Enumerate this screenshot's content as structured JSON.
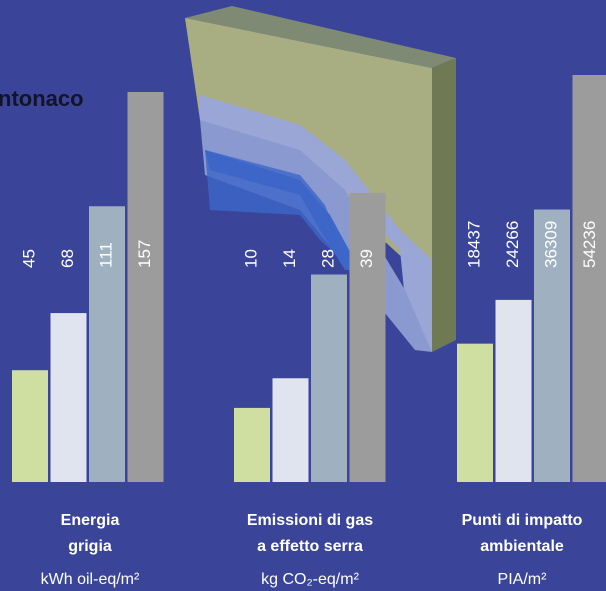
{
  "heading": "ntonaco",
  "chart_data": [
    {
      "type": "bar",
      "title_lines": [
        "Energia",
        "grigia"
      ],
      "unit": "kWh oil-eq/m²",
      "values": [
        45,
        68,
        111,
        157
      ],
      "colors": [
        "#cfdfa2",
        "#dfe4ee",
        "#9fb0c1",
        "#9c9c9c"
      ]
    },
    {
      "type": "bar",
      "title_lines": [
        "Emissioni di gas",
        "a effetto serra"
      ],
      "unit": "kg CO₂-eq/m²",
      "values": [
        10,
        14,
        28,
        39
      ],
      "colors": [
        "#cfdfa2",
        "#dfe4ee",
        "#9fb0c1",
        "#9c9c9c"
      ]
    },
    {
      "type": "bar",
      "title_lines": [
        "Punti di impatto",
        "ambientale"
      ],
      "unit": "PIA/m²",
      "values": [
        18437,
        24266,
        36309,
        54236
      ],
      "colors": [
        "#cfdfa2",
        "#dfe4ee",
        "#9fb0c1",
        "#9c9c9c"
      ]
    }
  ]
}
